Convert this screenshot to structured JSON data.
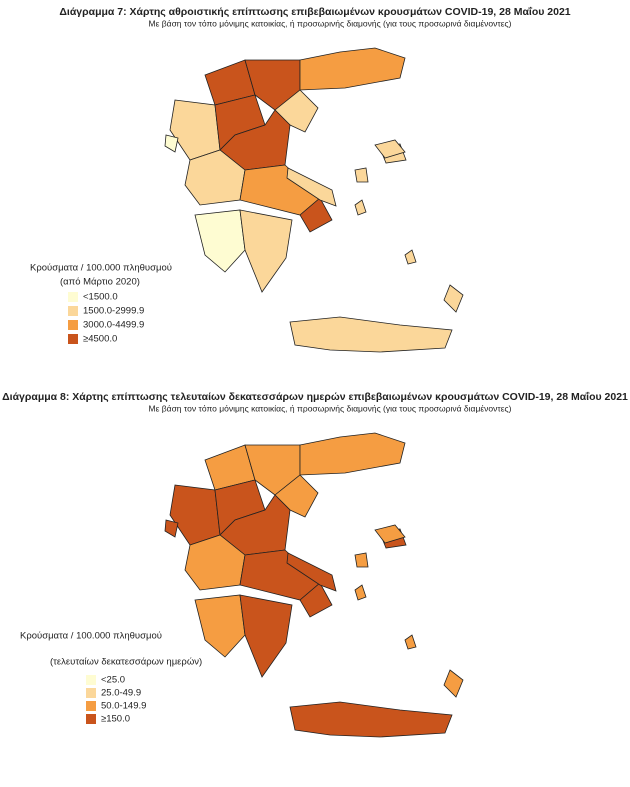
{
  "maps": [
    {
      "title": "Διάγραμμα 7: Χάρτης αθροιστικής επίπτωσης επιβεβαιωμένων κρουσμάτων COVID-19, 28 Μαΐου 2021",
      "subtitle": "Με βάση τον τόπο μόνιμης κατοικίας, ή προσωρινής διαμονής (για τους προσωρινά διαμένοντες)",
      "legend": {
        "title": "Κρούσματα / 100.000 πληθυσμού",
        "subtitle": "(από Μάρτιο 2020)",
        "items": [
          {
            "label": "<1500.0",
            "color": "#fefcd2"
          },
          {
            "label": "1500.0-2999.9",
            "color": "#fbd79a"
          },
          {
            "label": "3000.0-4499.9",
            "color": "#f59d42"
          },
          {
            "label": "≥4500.0",
            "color": "#c9541c"
          }
        ]
      }
    },
    {
      "title": "Διάγραμμα 8: Χάρτης επίπτωσης τελευταίων δεκατεσσάρων ημερών επιβεβαιωμένων κρουσμάτων COVID-19, 28 Μαΐου 2021",
      "subtitle": "Με βάση τον τόπο μόνιμης κατοικίας, ή προσωρινής διαμονής (για τους προσωρινά διαμένοντες)",
      "legend": {
        "title": "Κρούσματα / 100.000 πληθυσμού",
        "subtitle": "(τελευταίων δεκατεσσάρων ημερών)",
        "items": [
          {
            "label": "<25.0",
            "color": "#fefcd2"
          },
          {
            "label": "25.0-49.9",
            "color": "#fbd79a"
          },
          {
            "label": "50.0-149.9",
            "color": "#f59d42"
          },
          {
            "label": "≥150.0",
            "color": "#c9541c"
          }
        ]
      }
    }
  ]
}
